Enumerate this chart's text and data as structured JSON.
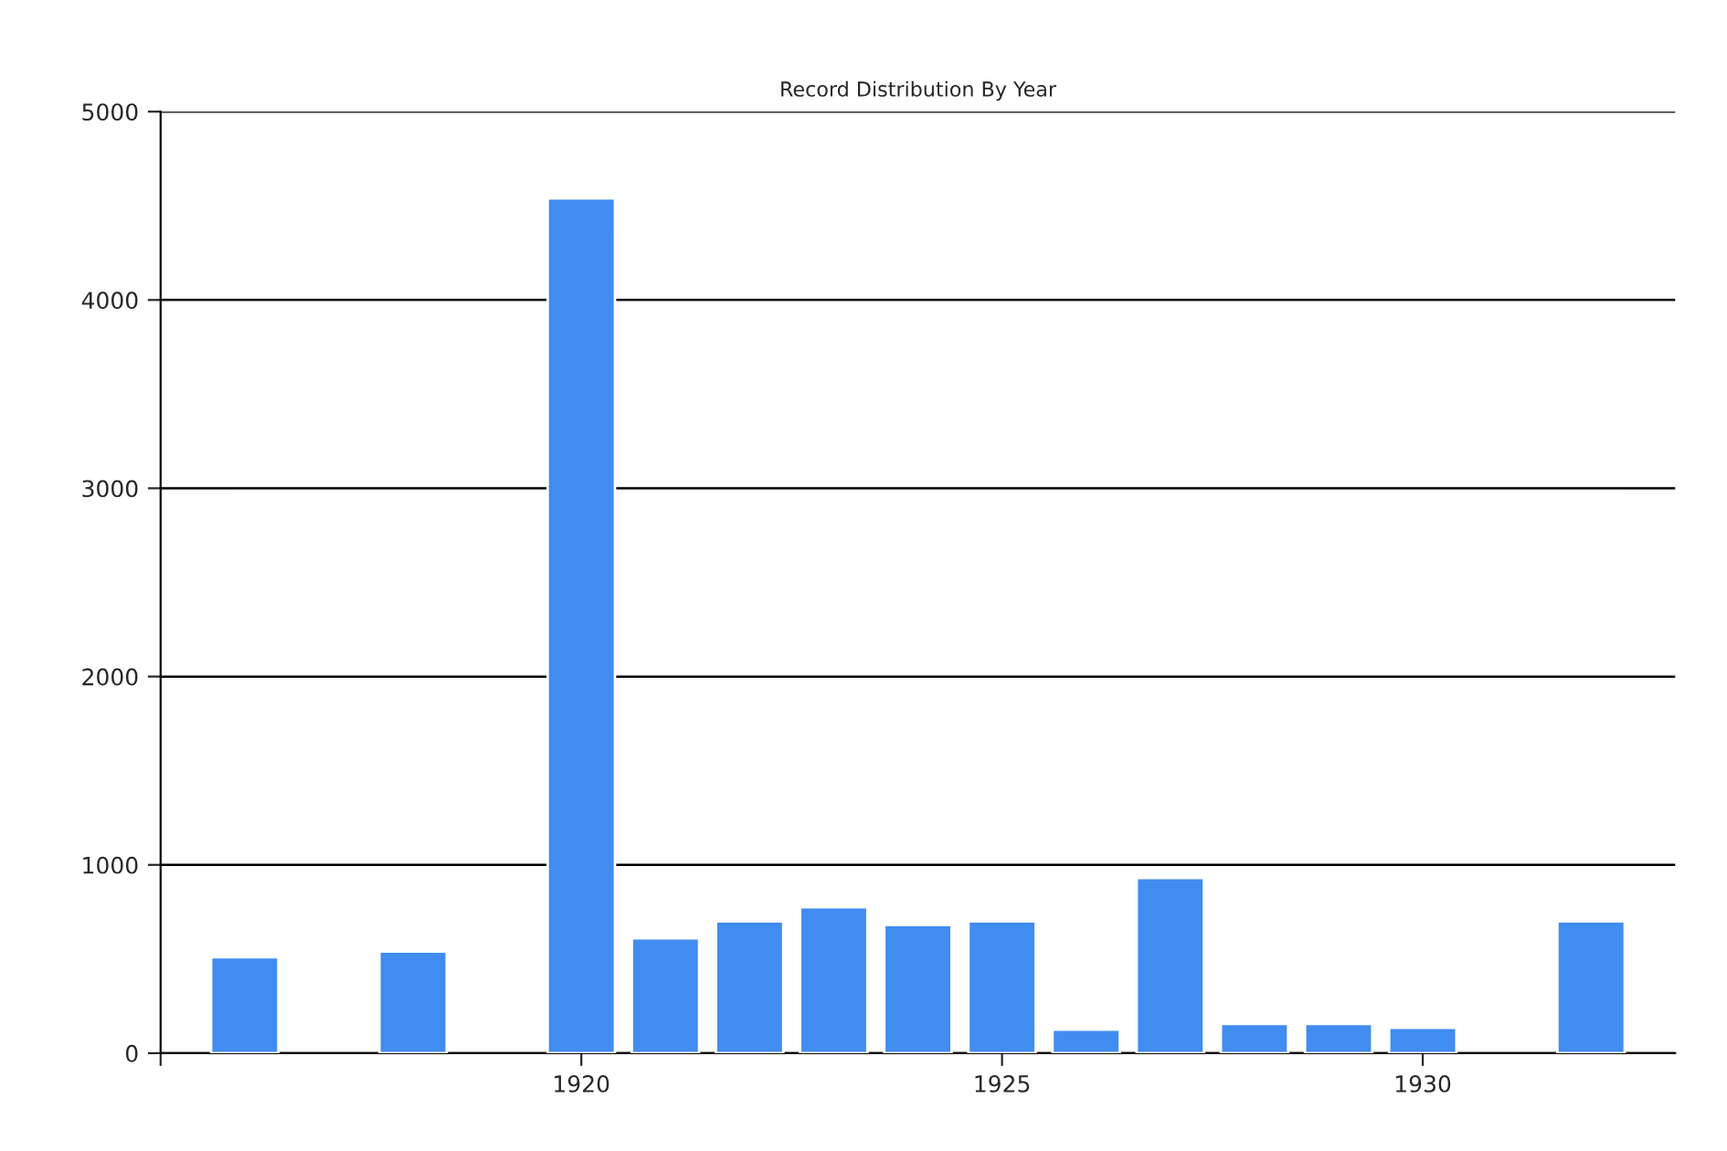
{
  "chart_data": {
    "type": "bar",
    "title": "Record Distribution By Year",
    "x": [
      1916,
      1918,
      1920,
      1921,
      1922,
      1923,
      1924,
      1925,
      1926,
      1927,
      1928,
      1929,
      1930,
      1932
    ],
    "series": [
      {
        "color": "#418cf0",
        "values": [
          510,
          540,
          4540,
          610,
          700,
          775,
          680,
          700,
          125,
          930,
          155,
          155,
          135,
          700
        ]
      }
    ],
    "xlim": [
      1915,
      1933
    ],
    "xticks": [
      {
        "value": 1915,
        "label": null
      },
      1920,
      1925,
      1930
    ],
    "ylim": [
      0,
      5000
    ],
    "yticks": [
      0,
      1000,
      2000,
      3000,
      4000,
      5000
    ],
    "grid": "y",
    "legend": false
  }
}
